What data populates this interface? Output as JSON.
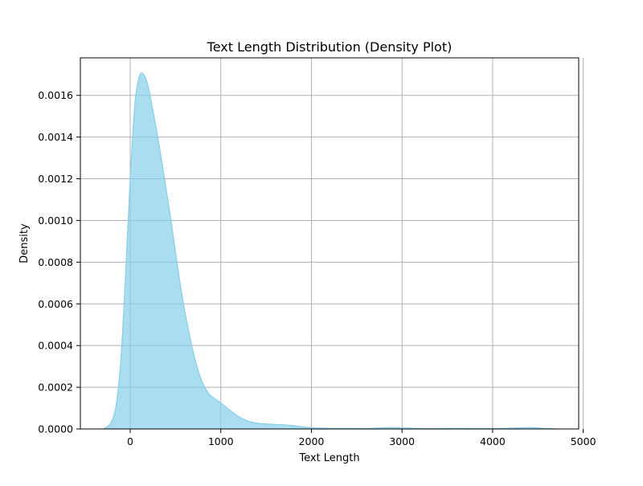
{
  "chart_data": {
    "type": "area",
    "title": "Text Length Distribution (Density Plot)",
    "xlabel": "Text Length",
    "ylabel": "Density",
    "xlim": [
      -550,
      4950
    ],
    "ylim": [
      0,
      0.00178
    ],
    "xticks": [
      0,
      1000,
      2000,
      3000,
      4000,
      5000
    ],
    "xtick_labels": [
      "0",
      "1000",
      "2000",
      "3000",
      "4000",
      "5000"
    ],
    "yticks": [
      0,
      0.0002,
      0.0004,
      0.0006,
      0.0008,
      0.001,
      0.0012,
      0.0014,
      0.0016
    ],
    "ytick_labels": [
      "0.0000",
      "0.0002",
      "0.0004",
      "0.0006",
      "0.0008",
      "0.0010",
      "0.0012",
      "0.0014",
      "0.0016"
    ],
    "grid": true,
    "colors": {
      "fill": "#87ceeb",
      "line": "#87ceeb",
      "grid": "#b0b0b0",
      "axis": "#000000"
    },
    "series": [
      {
        "x": [
          -300,
          -250,
          -200,
          -150,
          -100,
          -50,
          0,
          50,
          100,
          150,
          200,
          250,
          300,
          350,
          400,
          450,
          500,
          550,
          600,
          650,
          700,
          750,
          800,
          850,
          900,
          1000,
          1100,
          1200,
          1300,
          1400,
          1500,
          1600,
          1700,
          1800,
          1900,
          2000,
          2100,
          2200,
          2400,
          2600,
          2800,
          2900,
          3000,
          3200,
          3400,
          3600,
          3800,
          4000,
          4200,
          4400,
          4500,
          4600,
          4700
        ],
        "y": [
          0.0,
          1.2e-05,
          4e-05,
          0.00013,
          0.00035,
          0.00075,
          0.0012,
          0.00155,
          0.00169,
          0.0017,
          0.00164,
          0.00153,
          0.00141,
          0.00128,
          0.00114,
          0.001,
          0.00085,
          0.0007,
          0.00057,
          0.00046,
          0.00036,
          0.00028,
          0.00022,
          0.00018,
          0.000155,
          0.000125,
          9e-05,
          5.8e-05,
          3.8e-05,
          2.8e-05,
          2.4e-05,
          2.2e-05,
          2e-05,
          1.6e-05,
          1e-05,
          6e-06,
          4e-06,
          3e-06,
          3e-06,
          2e-06,
          6e-06,
          7e-06,
          5e-06,
          2e-06,
          2e-06,
          3e-06,
          2e-06,
          2e-06,
          4e-06,
          7e-06,
          5e-06,
          2e-06,
          0.0
        ]
      }
    ]
  }
}
